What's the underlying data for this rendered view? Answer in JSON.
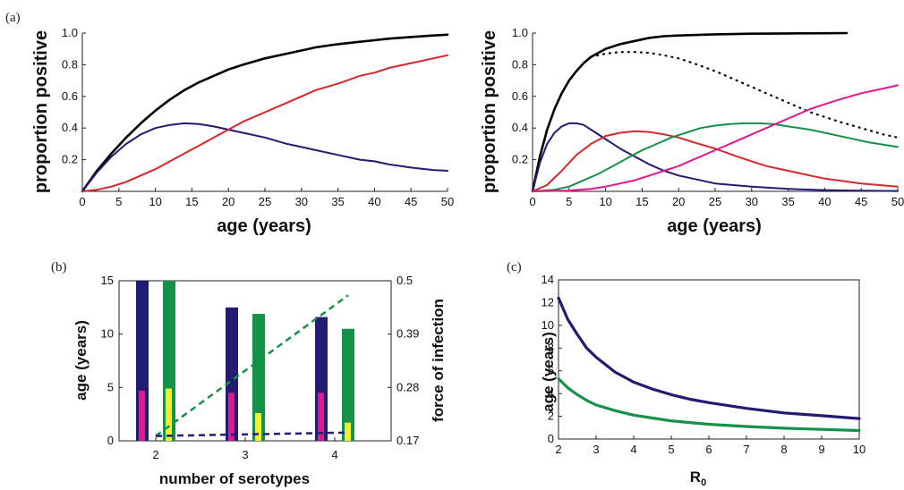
{
  "panel_labels": {
    "a": "(a)",
    "b": "(b)",
    "c": "(c)"
  },
  "colors": {
    "black": "#000000",
    "red": "#d7262b",
    "navy": "#231a72",
    "green": "#14924a",
    "magenta": "#e2178f",
    "yellow": "#f7ef1f",
    "axis": "#222222"
  },
  "chart_data": [
    {
      "id": "a-left",
      "type": "line",
      "title": "",
      "xlabel": "age (years)",
      "ylabel": "proportion positive",
      "xlim": [
        0,
        50
      ],
      "ylim": [
        0,
        1
      ],
      "xticks": [
        "0",
        "5",
        "10",
        "15",
        "20",
        "25",
        "30",
        "35",
        "40",
        "45",
        "50"
      ],
      "yticks": [
        "0.2",
        "0.4",
        "0.6",
        "0.8",
        "1.0"
      ],
      "grid": false,
      "series": [
        {
          "color": "black",
          "style": "solid",
          "x": [
            0,
            2,
            4,
            6,
            8,
            10,
            12,
            14,
            16,
            18,
            20,
            22,
            25,
            28,
            30,
            32,
            35,
            38,
            40,
            42,
            45,
            48,
            50
          ],
          "y": [
            0,
            0.13,
            0.24,
            0.34,
            0.43,
            0.51,
            0.58,
            0.64,
            0.69,
            0.73,
            0.77,
            0.8,
            0.84,
            0.87,
            0.89,
            0.91,
            0.93,
            0.945,
            0.955,
            0.965,
            0.975,
            0.985,
            0.99
          ]
        },
        {
          "color": "navy",
          "style": "solid",
          "x": [
            0,
            2,
            4,
            6,
            8,
            10,
            12,
            14,
            16,
            18,
            20,
            22,
            25,
            28,
            30,
            32,
            35,
            38,
            40,
            42,
            45,
            48,
            50
          ],
          "y": [
            0,
            0.12,
            0.22,
            0.3,
            0.36,
            0.4,
            0.42,
            0.43,
            0.425,
            0.41,
            0.39,
            0.37,
            0.34,
            0.3,
            0.28,
            0.26,
            0.23,
            0.2,
            0.19,
            0.17,
            0.15,
            0.135,
            0.13
          ]
        },
        {
          "color": "red",
          "style": "solid",
          "x": [
            0,
            2,
            4,
            6,
            8,
            10,
            12,
            14,
            16,
            18,
            20,
            22,
            25,
            28,
            30,
            32,
            35,
            38,
            40,
            42,
            45,
            48,
            50
          ],
          "y": [
            0,
            0.01,
            0.03,
            0.06,
            0.1,
            0.14,
            0.19,
            0.24,
            0.29,
            0.34,
            0.39,
            0.44,
            0.5,
            0.56,
            0.6,
            0.64,
            0.68,
            0.73,
            0.75,
            0.78,
            0.81,
            0.84,
            0.86
          ]
        }
      ]
    },
    {
      "id": "a-right",
      "type": "line",
      "title": "",
      "xlabel": "age (years)",
      "ylabel": "proportion positive",
      "xlim": [
        0,
        50
      ],
      "ylim": [
        0,
        1
      ],
      "xticks": [
        "0",
        "5",
        "10",
        "15",
        "20",
        "25",
        "30",
        "35",
        "40",
        "45",
        "50"
      ],
      "yticks": [
        "0.2",
        "0.4",
        "0.6",
        "0.8",
        "1.0"
      ],
      "grid": false,
      "series": [
        {
          "color": "black",
          "style": "solid",
          "x": [
            0,
            1,
            2,
            3,
            4,
            5,
            6,
            7,
            8,
            10,
            12,
            14,
            16,
            18,
            20,
            25,
            30,
            35,
            40,
            43
          ],
          "y": [
            0,
            0.22,
            0.39,
            0.52,
            0.62,
            0.7,
            0.76,
            0.81,
            0.85,
            0.9,
            0.93,
            0.95,
            0.97,
            0.98,
            0.985,
            0.992,
            0.996,
            0.998,
            0.999,
            1.0
          ]
        },
        {
          "color": "black",
          "style": "dotted",
          "x": [
            8,
            10,
            12,
            14,
            16,
            18,
            20,
            22,
            25,
            28,
            30,
            32,
            35,
            38,
            40,
            42,
            45,
            48,
            50
          ],
          "y": [
            0.85,
            0.87,
            0.88,
            0.88,
            0.875,
            0.86,
            0.84,
            0.81,
            0.76,
            0.7,
            0.66,
            0.62,
            0.56,
            0.5,
            0.47,
            0.44,
            0.4,
            0.36,
            0.34
          ]
        },
        {
          "color": "navy",
          "style": "solid",
          "x": [
            0,
            1,
            2,
            3,
            4,
            5,
            6,
            7,
            8,
            10,
            12,
            14,
            16,
            18,
            20,
            25,
            30,
            35,
            40,
            45,
            50
          ],
          "y": [
            0,
            0.18,
            0.3,
            0.37,
            0.41,
            0.43,
            0.43,
            0.42,
            0.39,
            0.33,
            0.27,
            0.22,
            0.17,
            0.13,
            0.1,
            0.05,
            0.03,
            0.015,
            0.008,
            0.004,
            0.002
          ]
        },
        {
          "color": "red",
          "style": "solid",
          "x": [
            0,
            2,
            4,
            6,
            8,
            10,
            12,
            14,
            16,
            18,
            20,
            22,
            25,
            28,
            30,
            32,
            35,
            38,
            40,
            45,
            50
          ],
          "y": [
            0,
            0.04,
            0.13,
            0.23,
            0.3,
            0.35,
            0.37,
            0.38,
            0.375,
            0.36,
            0.34,
            0.31,
            0.27,
            0.22,
            0.19,
            0.16,
            0.13,
            0.1,
            0.08,
            0.05,
            0.03
          ]
        },
        {
          "color": "green",
          "style": "solid",
          "x": [
            0,
            3,
            5,
            7,
            9,
            11,
            13,
            15,
            17,
            19,
            21,
            23,
            25,
            27,
            29,
            31,
            33,
            35,
            38,
            40,
            43,
            46,
            50
          ],
          "y": [
            0,
            0.01,
            0.03,
            0.07,
            0.11,
            0.16,
            0.21,
            0.26,
            0.3,
            0.34,
            0.37,
            0.4,
            0.415,
            0.425,
            0.43,
            0.43,
            0.425,
            0.41,
            0.39,
            0.37,
            0.34,
            0.31,
            0.28
          ]
        },
        {
          "color": "magenta",
          "style": "solid",
          "x": [
            0,
            5,
            8,
            10,
            12,
            14,
            16,
            18,
            20,
            22,
            25,
            28,
            30,
            32,
            35,
            38,
            40,
            42,
            45,
            48,
            50
          ],
          "y": [
            0,
            0.005,
            0.015,
            0.03,
            0.05,
            0.07,
            0.1,
            0.13,
            0.16,
            0.2,
            0.26,
            0.32,
            0.36,
            0.4,
            0.46,
            0.52,
            0.55,
            0.58,
            0.62,
            0.65,
            0.67
          ]
        }
      ]
    },
    {
      "id": "b",
      "type": "bar",
      "title": "",
      "xlabel": "number of serotypes",
      "ylabel": "age (years)",
      "ylabel_right": "force of infection",
      "categories": [
        "2",
        "3",
        "4"
      ],
      "ylim": [
        0,
        15
      ],
      "ylim_right": [
        0.17,
        0.5
      ],
      "yticks": [
        "0",
        "5",
        "10",
        "15"
      ],
      "yticks_right": [
        "0.17",
        "0.28",
        "0.39",
        "0.5"
      ],
      "grid": false,
      "bars": [
        {
          "color": "navy",
          "values": [
            15,
            12.5,
            11.6
          ]
        },
        {
          "color": "magenta",
          "values": [
            4.7,
            4.5,
            4.5
          ]
        },
        {
          "color": "green",
          "values": [
            15,
            11.9,
            10.5
          ]
        },
        {
          "color": "yellow",
          "values": [
            4.9,
            2.6,
            1.7
          ]
        }
      ],
      "dashed_lines": [
        {
          "color": "green",
          "axis": "right",
          "x": [
            2,
            4.15
          ],
          "y": [
            0.18,
            0.47
          ]
        },
        {
          "color": "navy",
          "axis": "right",
          "x": [
            2,
            4.15
          ],
          "y": [
            0.18,
            0.187
          ]
        }
      ]
    },
    {
      "id": "c",
      "type": "line",
      "title": "",
      "xlabel": "R",
      "xlabel_subscript": "0",
      "ylabel": "age (years)",
      "xlim": [
        2,
        10
      ],
      "ylim": [
        0,
        14
      ],
      "xticks": [
        "2",
        "3",
        "4",
        "5",
        "6",
        "7",
        "8",
        "9",
        "10"
      ],
      "yticks": [
        "0",
        "2",
        "4",
        "6",
        "8",
        "10",
        "12",
        "14"
      ],
      "grid": false,
      "series": [
        {
          "color": "navy",
          "style": "solid",
          "x": [
            2,
            2.25,
            2.5,
            2.75,
            3,
            3.5,
            4,
            4.5,
            5,
            5.5,
            6,
            7,
            8,
            9,
            10
          ],
          "y": [
            12.4,
            10.5,
            9.2,
            8.0,
            7.2,
            5.9,
            5.0,
            4.4,
            3.9,
            3.5,
            3.2,
            2.7,
            2.3,
            2.05,
            1.8
          ]
        },
        {
          "color": "green",
          "style": "solid",
          "x": [
            2,
            2.25,
            2.5,
            2.75,
            3,
            3.5,
            4,
            4.5,
            5,
            5.5,
            6,
            7,
            8,
            9,
            10
          ],
          "y": [
            5.3,
            4.5,
            3.9,
            3.4,
            3.0,
            2.5,
            2.1,
            1.85,
            1.6,
            1.45,
            1.3,
            1.1,
            0.95,
            0.85,
            0.75
          ]
        }
      ]
    }
  ]
}
